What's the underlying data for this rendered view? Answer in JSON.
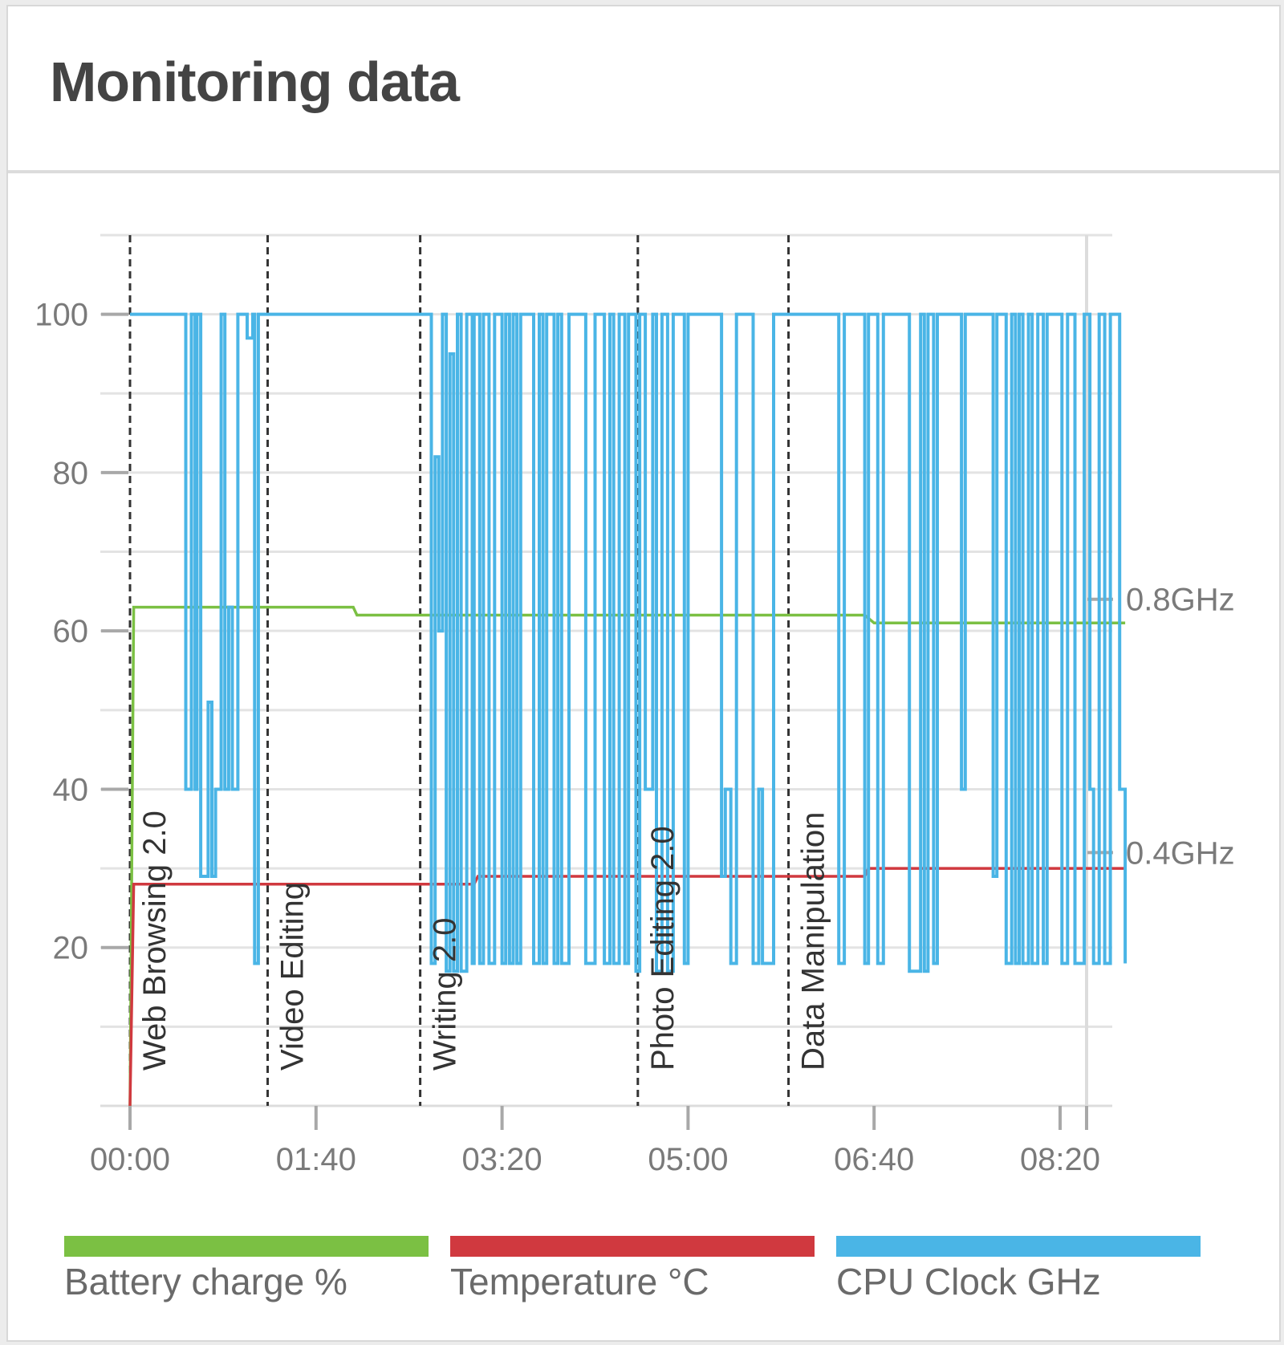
{
  "panel": {
    "title": "Monitoring data"
  },
  "chart_data": {
    "type": "line",
    "xlabel": "",
    "ylabel": "",
    "x_unit": "minutes",
    "xlim": [
      0,
      535
    ],
    "ylim": [
      0,
      110
    ],
    "y_ticks": [
      20,
      40,
      60,
      80,
      100
    ],
    "x_ticks": [
      {
        "value": 0,
        "label": "00:00"
      },
      {
        "value": 100,
        "label": "01:40"
      },
      {
        "value": 200,
        "label": "03:20"
      },
      {
        "value": 300,
        "label": "05:00"
      },
      {
        "value": 400,
        "label": "06:40"
      },
      {
        "value": 500,
        "label": "08:20"
      }
    ],
    "y2_ticks": [
      {
        "value": 0.8,
        "label": "0.8GHz"
      },
      {
        "value": 0.4,
        "label": "0.4GHz"
      }
    ],
    "y2_scale": {
      "ghz_at_y": [
        [
          0.4,
          32.0
        ],
        [
          0.8,
          64.0
        ]
      ]
    },
    "grid": true,
    "legend_position": "bottom",
    "phases": [
      {
        "start": 0,
        "label": "Web Browsing 2.0"
      },
      {
        "start": 74,
        "label": "Video Editing"
      },
      {
        "start": 156,
        "label": "Writing 2.0"
      },
      {
        "start": 273,
        "label": "Photo Editing 2.0"
      },
      {
        "start": 354,
        "label": "Data Manipulation"
      }
    ],
    "series": [
      {
        "name": "Battery charge %",
        "color": "#7bc043",
        "points": [
          [
            0,
            0
          ],
          [
            2,
            63
          ],
          [
            120,
            63
          ],
          [
            122,
            62
          ],
          [
            395,
            62
          ],
          [
            400,
            61
          ],
          [
            535,
            61
          ]
        ]
      },
      {
        "name": "Temperature °C",
        "color": "#d0393f",
        "points": [
          [
            0,
            0
          ],
          [
            2,
            28
          ],
          [
            185,
            28
          ],
          [
            187,
            29
          ],
          [
            395,
            29
          ],
          [
            397,
            30
          ],
          [
            535,
            30
          ]
        ]
      },
      {
        "name": "CPU Clock GHz",
        "color": "#4ab5e6",
        "points": [
          [
            0,
            100
          ],
          [
            30,
            100
          ],
          [
            30,
            40
          ],
          [
            33,
            40
          ],
          [
            33,
            100
          ],
          [
            35,
            100
          ],
          [
            35,
            40
          ],
          [
            36,
            40
          ],
          [
            36,
            100
          ],
          [
            38,
            100
          ],
          [
            38,
            29
          ],
          [
            42,
            29
          ],
          [
            42,
            51
          ],
          [
            44,
            51
          ],
          [
            44,
            29
          ],
          [
            46,
            29
          ],
          [
            46,
            40
          ],
          [
            49,
            40
          ],
          [
            49,
            100
          ],
          [
            51,
            100
          ],
          [
            51,
            40
          ],
          [
            53,
            40
          ],
          [
            53,
            63
          ],
          [
            55,
            63
          ],
          [
            55,
            40
          ],
          [
            58,
            40
          ],
          [
            58,
            100
          ],
          [
            63,
            100
          ],
          [
            63,
            97
          ],
          [
            66,
            97
          ],
          [
            66,
            100
          ],
          [
            67,
            100
          ],
          [
            67,
            18
          ],
          [
            69,
            18
          ],
          [
            69,
            100
          ],
          [
            160,
            100
          ],
          [
            162,
            100
          ],
          [
            162,
            18
          ],
          [
            164,
            18
          ],
          [
            164,
            82
          ],
          [
            166,
            82
          ],
          [
            166,
            60
          ],
          [
            168,
            60
          ],
          [
            168,
            100
          ],
          [
            170,
            100
          ],
          [
            170,
            17
          ],
          [
            172,
            17
          ],
          [
            172,
            95
          ],
          [
            174,
            95
          ],
          [
            174,
            17
          ],
          [
            176,
            17
          ],
          [
            176,
            100
          ],
          [
            178,
            100
          ],
          [
            178,
            17
          ],
          [
            181,
            17
          ],
          [
            181,
            100
          ],
          [
            184,
            100
          ],
          [
            184,
            18
          ],
          [
            185,
            18
          ],
          [
            185,
            100
          ],
          [
            188,
            100
          ],
          [
            188,
            18
          ],
          [
            190,
            18
          ],
          [
            190,
            100
          ],
          [
            193,
            100
          ],
          [
            193,
            18
          ],
          [
            196,
            18
          ],
          [
            196,
            100
          ],
          [
            200,
            100
          ],
          [
            200,
            18
          ],
          [
            202,
            18
          ],
          [
            202,
            100
          ],
          [
            204,
            100
          ],
          [
            204,
            18
          ],
          [
            206,
            18
          ],
          [
            206,
            100
          ],
          [
            208,
            100
          ],
          [
            208,
            18
          ],
          [
            210,
            18
          ],
          [
            210,
            100
          ],
          [
            217,
            100
          ],
          [
            217,
            18
          ],
          [
            220,
            18
          ],
          [
            220,
            100
          ],
          [
            222,
            100
          ],
          [
            222,
            18
          ],
          [
            224,
            18
          ],
          [
            224,
            100
          ],
          [
            228,
            100
          ],
          [
            228,
            18
          ],
          [
            230,
            18
          ],
          [
            230,
            100
          ],
          [
            232,
            100
          ],
          [
            232,
            18
          ],
          [
            236,
            18
          ],
          [
            236,
            100
          ],
          [
            245,
            100
          ],
          [
            245,
            18
          ],
          [
            250,
            18
          ],
          [
            250,
            100
          ],
          [
            255,
            100
          ],
          [
            255,
            18
          ],
          [
            258,
            18
          ],
          [
            258,
            100
          ],
          [
            260,
            100
          ],
          [
            260,
            18
          ],
          [
            263,
            18
          ],
          [
            263,
            100
          ],
          [
            266,
            100
          ],
          [
            266,
            18
          ],
          [
            268,
            18
          ],
          [
            268,
            100
          ],
          [
            272,
            100
          ],
          [
            272,
            17
          ],
          [
            274,
            17
          ],
          [
            274,
            100
          ],
          [
            277,
            100
          ],
          [
            277,
            40
          ],
          [
            281,
            40
          ],
          [
            281,
            100
          ],
          [
            283,
            100
          ],
          [
            283,
            17
          ],
          [
            286,
            17
          ],
          [
            286,
            100
          ],
          [
            289,
            100
          ],
          [
            289,
            17
          ],
          [
            292,
            17
          ],
          [
            292,
            100
          ],
          [
            298,
            100
          ],
          [
            298,
            18
          ],
          [
            300,
            18
          ],
          [
            300,
            100
          ],
          [
            318,
            100
          ],
          [
            318,
            29
          ],
          [
            320,
            29
          ],
          [
            320,
            40
          ],
          [
            323,
            40
          ],
          [
            323,
            18
          ],
          [
            326,
            18
          ],
          [
            326,
            100
          ],
          [
            335,
            100
          ],
          [
            335,
            18
          ],
          [
            338,
            18
          ],
          [
            338,
            40
          ],
          [
            340,
            40
          ],
          [
            340,
            18
          ],
          [
            346,
            18
          ],
          [
            346,
            100
          ],
          [
            366,
            100
          ],
          [
            366,
            100
          ],
          [
            368,
            100
          ],
          [
            368,
            100
          ],
          [
            381,
            100
          ],
          [
            381,
            18
          ],
          [
            384,
            18
          ],
          [
            384,
            100
          ],
          [
            395,
            100
          ],
          [
            395,
            18
          ],
          [
            397,
            18
          ],
          [
            397,
            100
          ],
          [
            402,
            100
          ],
          [
            402,
            18
          ],
          [
            405,
            18
          ],
          [
            405,
            100
          ],
          [
            419,
            100
          ],
          [
            419,
            17
          ],
          [
            425,
            17
          ],
          [
            425,
            100
          ],
          [
            427,
            100
          ],
          [
            427,
            17
          ],
          [
            429,
            17
          ],
          [
            429,
            100
          ],
          [
            432,
            100
          ],
          [
            432,
            18
          ],
          [
            434,
            18
          ],
          [
            434,
            100
          ],
          [
            447,
            100
          ],
          [
            447,
            40
          ],
          [
            449,
            40
          ],
          [
            449,
            100
          ],
          [
            464,
            100
          ],
          [
            464,
            29
          ],
          [
            466,
            29
          ],
          [
            466,
            100
          ],
          [
            471,
            100
          ],
          [
            471,
            18
          ],
          [
            474,
            18
          ],
          [
            474,
            100
          ],
          [
            476,
            100
          ],
          [
            476,
            18
          ],
          [
            478,
            18
          ],
          [
            478,
            100
          ],
          [
            480,
            100
          ],
          [
            480,
            18
          ],
          [
            483,
            18
          ],
          [
            483,
            100
          ],
          [
            485,
            100
          ],
          [
            485,
            18
          ],
          [
            488,
            18
          ],
          [
            488,
            100
          ],
          [
            491,
            100
          ],
          [
            491,
            18
          ],
          [
            493,
            18
          ],
          [
            493,
            100
          ],
          [
            501,
            100
          ],
          [
            501,
            18
          ],
          [
            504,
            18
          ],
          [
            504,
            100
          ],
          [
            508,
            100
          ],
          [
            508,
            18
          ],
          [
            513,
            18
          ],
          [
            513,
            100
          ],
          [
            516,
            100
          ],
          [
            516,
            40
          ],
          [
            518,
            40
          ],
          [
            518,
            18
          ],
          [
            521,
            18
          ],
          [
            521,
            100
          ],
          [
            524,
            100
          ],
          [
            524,
            18
          ],
          [
            527,
            18
          ],
          [
            527,
            100
          ],
          [
            532,
            100
          ],
          [
            532,
            40
          ],
          [
            535,
            40
          ],
          [
            535,
            18
          ]
        ]
      }
    ]
  }
}
